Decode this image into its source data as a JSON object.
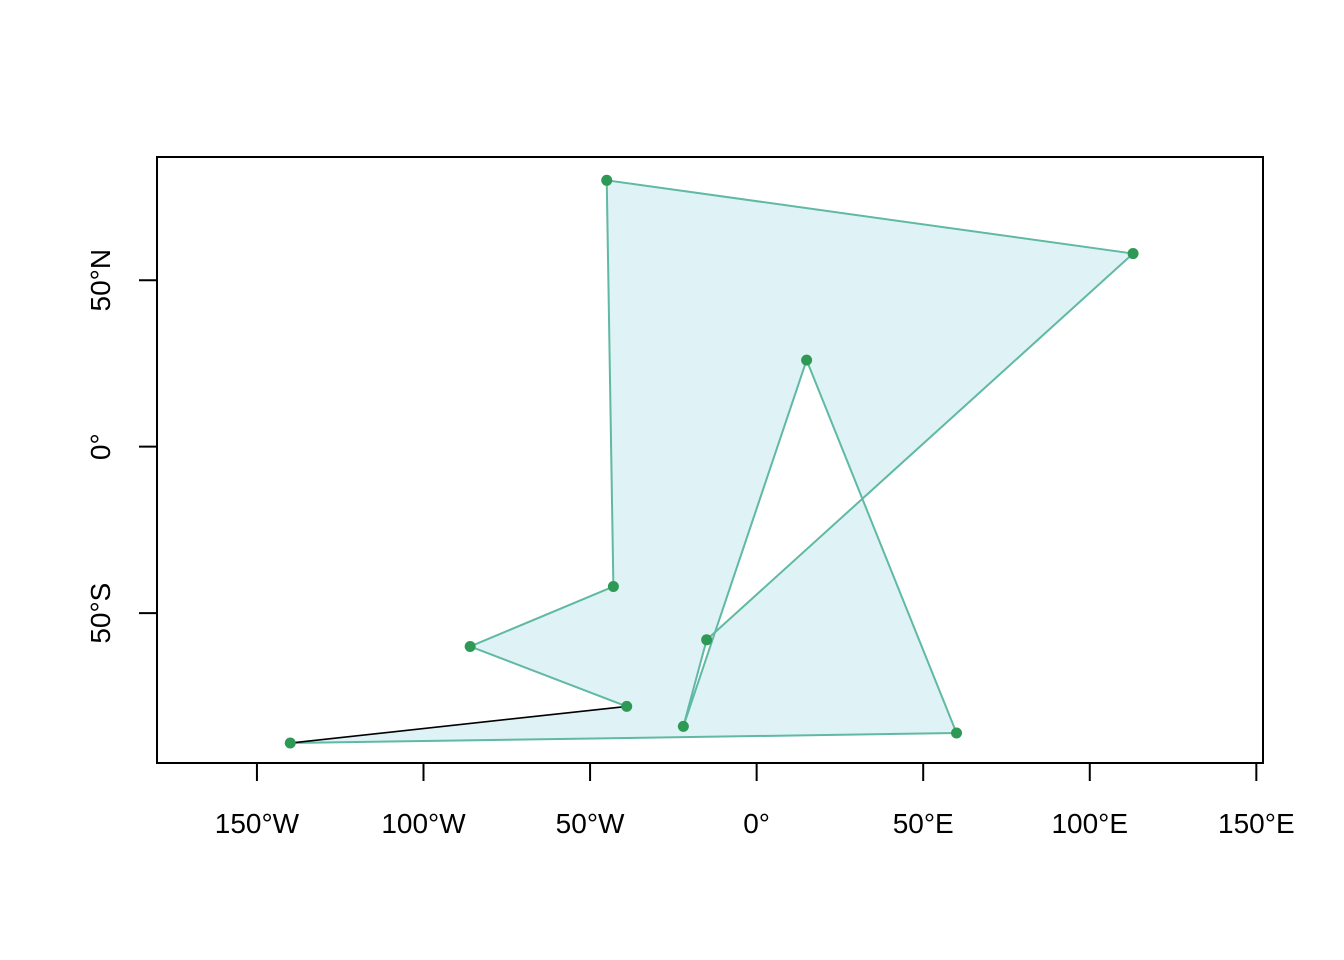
{
  "chart_data": {
    "type": "scatter",
    "title": "",
    "xlabel": "",
    "ylabel": "",
    "xlim": [
      -180,
      152
    ],
    "ylim": [
      -95,
      87
    ],
    "grid": false,
    "x_ticks": [
      {
        "value": -150,
        "label": "150°W"
      },
      {
        "value": -100,
        "label": "100°W"
      },
      {
        "value": -50,
        "label": "50°W"
      },
      {
        "value": 0,
        "label": "0°"
      },
      {
        "value": 50,
        "label": "50°E"
      },
      {
        "value": 100,
        "label": "100°E"
      },
      {
        "value": 150,
        "label": "150°E"
      }
    ],
    "y_ticks": [
      {
        "value": -50,
        "label": "50°S"
      },
      {
        "value": 0,
        "label": "0°"
      },
      {
        "value": 50,
        "label": "50°N"
      }
    ],
    "points": [
      {
        "x": -140,
        "y": -89
      },
      {
        "x": 60,
        "y": -86
      },
      {
        "x": 15,
        "y": 26
      },
      {
        "x": -22,
        "y": -84
      },
      {
        "x": -15,
        "y": -58
      },
      {
        "x": 113,
        "y": 58
      },
      {
        "x": -45,
        "y": 80
      },
      {
        "x": -43,
        "y": -42
      },
      {
        "x": -86,
        "y": -60
      },
      {
        "x": -39,
        "y": -78
      }
    ],
    "polygon_order": [
      0,
      1,
      2,
      3,
      4,
      5,
      6,
      7,
      8,
      9
    ],
    "colors": {
      "fill": "#dff2f5",
      "outline": "#5fb9a3",
      "closing_edge": "#000000",
      "points": "#2e9954",
      "axis": "#000000"
    }
  }
}
